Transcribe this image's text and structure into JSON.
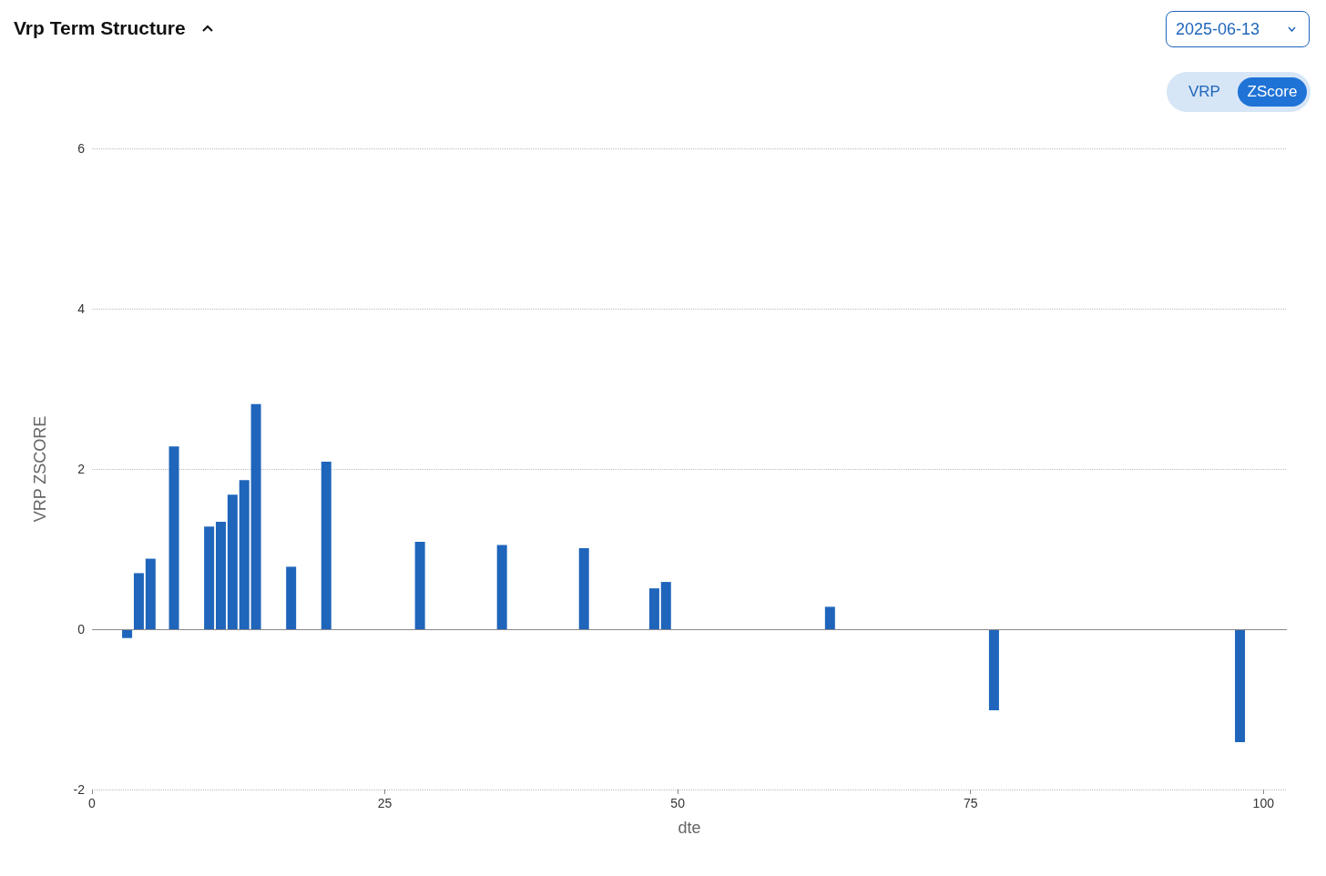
{
  "chart_data": {
    "type": "bar",
    "title": "Vrp Term Structure",
    "xlabel": "dte",
    "ylabel": "VRP ZSCORE",
    "annotations": [
      "2025-06-13",
      "VRP",
      "ZScore"
    ],
    "x": [
      3,
      4,
      5,
      7,
      10,
      11,
      12,
      13,
      14,
      17,
      20,
      28,
      35,
      42,
      48,
      49,
      63,
      77,
      98
    ],
    "values": [
      -0.11,
      0.7,
      0.88,
      2.28,
      1.28,
      1.34,
      1.68,
      1.86,
      2.81,
      0.78,
      2.09,
      1.09,
      1.05,
      1.01,
      0.51,
      0.59,
      0.28,
      -1.01,
      -1.41
    ],
    "color": "#1f65bb",
    "xlim": [
      0,
      102
    ],
    "xticks": [
      0,
      25,
      50,
      75,
      100
    ],
    "ylim": [
      -2,
      6
    ],
    "yticks": [
      -2,
      0,
      2,
      4,
      6
    ],
    "grid": "y"
  }
}
